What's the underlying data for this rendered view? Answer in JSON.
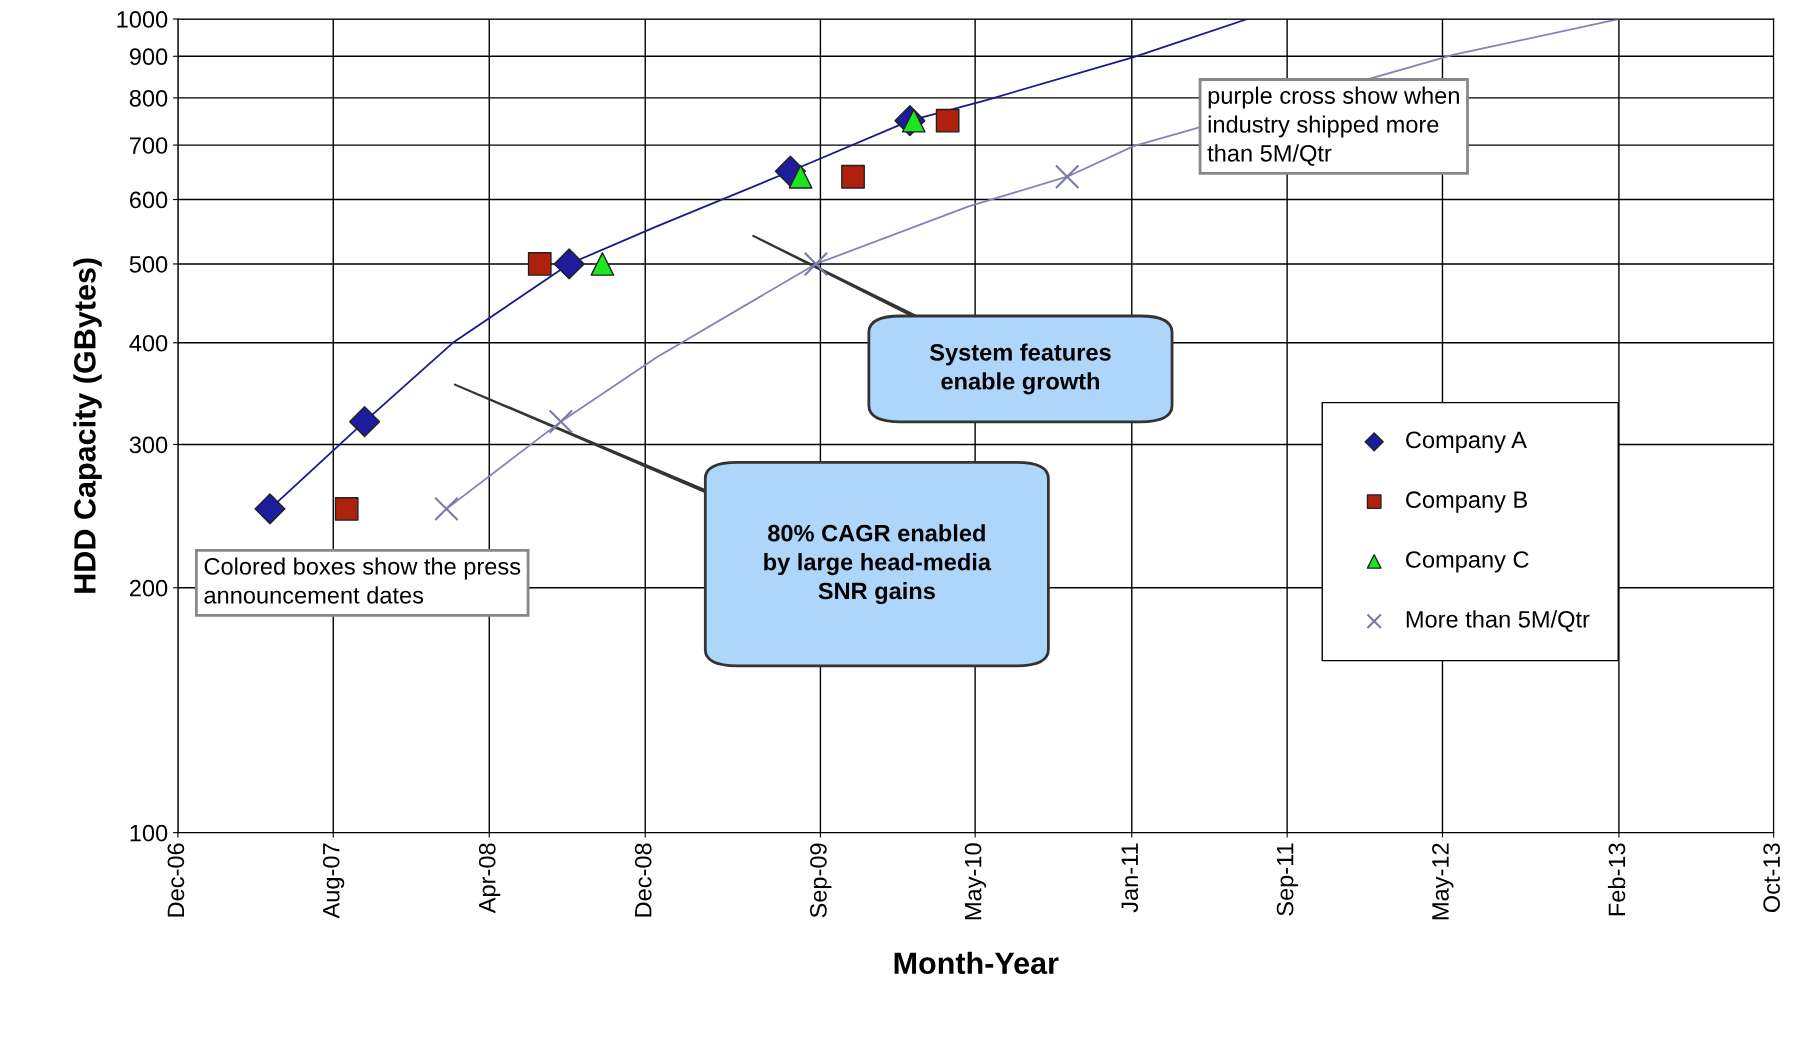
{
  "chart_data": {
    "type": "scatter",
    "xlabel": "Month-Year",
    "ylabel": "HDD Capacity (GBytes)",
    "log": "y",
    "grid": true,
    "legend": "right",
    "xlim": [
      "2006-12",
      "2013-10"
    ],
    "xticks": [
      {
        "value": "2006-12",
        "label": "Dec-06"
      },
      {
        "value": "2007-08",
        "label": "Aug-07"
      },
      {
        "value": "2008-04",
        "label": "Apr-08"
      },
      {
        "value": "2008-12",
        "label": "Dec-08"
      },
      {
        "value": "2009-09",
        "label": "Sep-09"
      },
      {
        "value": "2010-05",
        "label": "May-10"
      },
      {
        "value": "2011-01",
        "label": "Jan-11"
      },
      {
        "value": "2011-09",
        "label": "Sep-11"
      },
      {
        "value": "2012-05",
        "label": "May-12"
      },
      {
        "value": "2013-02",
        "label": "Feb-13"
      },
      {
        "value": "2013-10",
        "label": "Oct-13"
      }
    ],
    "ylim": [
      100,
      1000
    ],
    "yticks": [
      100,
      200,
      300,
      400,
      500,
      600,
      700,
      800,
      900,
      1000
    ],
    "series": [
      {
        "type": "line",
        "color": "#1a1a8c",
        "marker": "none",
        "line_style": "solid",
        "x": [
          "2007-04-24",
          "2007-09-19",
          "2008-02-04",
          "2008-08-04",
          "2008-12-19",
          "2009-07-16",
          "2010-01-19",
          "2010-05-16",
          "2011-01-04",
          "2011-07-01"
        ],
        "values": [
          250,
          320,
          400,
          500,
          556,
          650,
          750,
          794,
          898,
          1000
        ]
      },
      {
        "type": "line",
        "color": "#8484b4",
        "marker": "none",
        "line_style": "solid",
        "x": [
          "2008-01-25",
          "2008-07-22",
          "2008-12-19",
          "2009-08-25",
          "2010-04-22",
          "2010-09-22",
          "2011-01-04",
          "2012-05-19",
          "2013-02-01"
        ],
        "values": [
          250,
          320,
          384,
          500,
          589,
          640,
          698,
          904,
          1000
        ]
      },
      {
        "name": "Company A",
        "color": "#1c1c9c",
        "marker": "diamond",
        "x": [
          "2007-04-24",
          "2007-09-19",
          "2008-08-04",
          "2009-07-16",
          "2010-01-19"
        ],
        "values": [
          250,
          320,
          500,
          650,
          750
        ]
      },
      {
        "name": "Company B",
        "color": "#b0200e",
        "marker": "square",
        "x": [
          "2007-08-22",
          "2008-06-19",
          "2009-10-22",
          "2010-03-19"
        ],
        "values": [
          250,
          500,
          640,
          750
        ]
      },
      {
        "name": "Company C",
        "color": "#1ee61e",
        "marker": "triangle",
        "x": [
          "2008-09-25",
          "2009-08-01",
          "2010-01-25"
        ],
        "values": [
          500,
          640,
          750
        ]
      },
      {
        "name": "More than 5M/Qtr",
        "color": "#7a7aa6",
        "marker": "cross",
        "x": [
          "2008-01-25",
          "2008-07-22",
          "2009-08-25",
          "2010-09-22"
        ],
        "values": [
          250,
          320,
          500,
          640
        ]
      }
    ],
    "annotations": [
      "Colored boxes show the press\nannouncement dates",
      "purple cross show when\nindustry shipped more\nthan 5M/Qtr",
      "System features\nenable growth",
      "80% CAGR enabled\nby large head-media\nSNR gains"
    ]
  }
}
